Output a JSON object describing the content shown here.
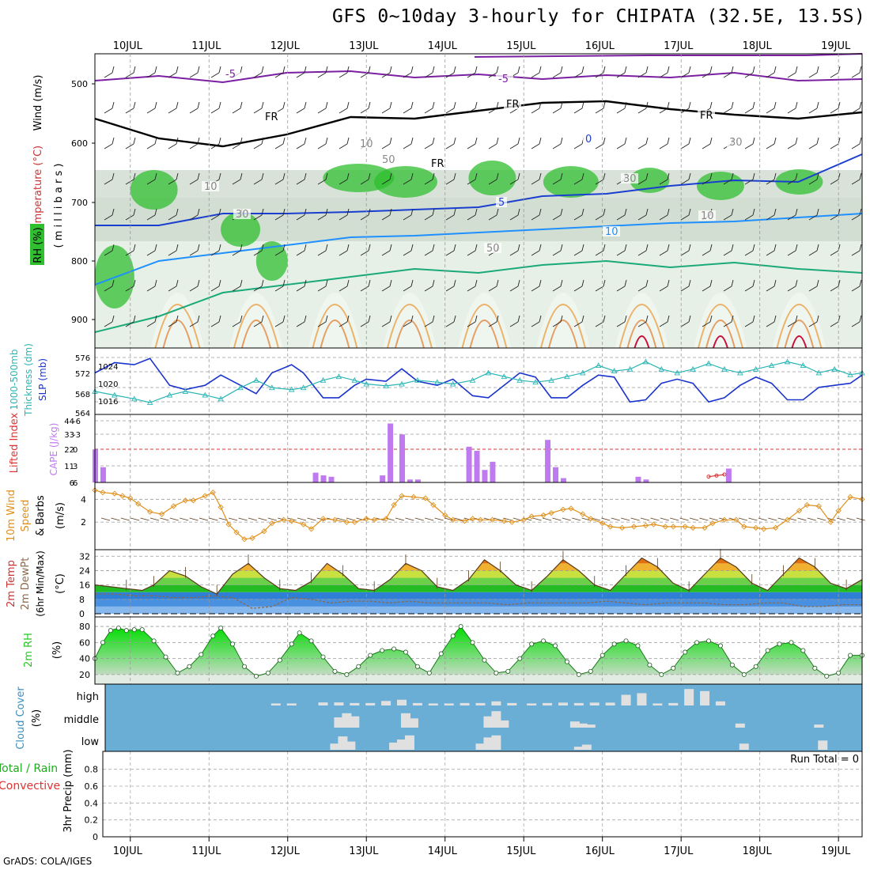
{
  "title": "GFS 0~10day 3-hourly for CHIPATA (32.5E, 13.5S)",
  "footer": "GrADS: COLA/IGES",
  "colors": {
    "frame": "#000000",
    "grid": "#9a9a9a",
    "temp": "#7a1fa2",
    "freeze": "#000000",
    "iso_blue": "#1a3fd0",
    "iso_lblue": "#1e90ff",
    "iso_teal": "#1aaa7a",
    "iso_orange": "#e08a1a",
    "iso_red": "#c8103c",
    "rh_dark": "#2fbf2f",
    "rh_light": "#dff0df",
    "rh_grey": "#aebdae",
    "slp": "#1a33cc",
    "thick": "#2ab5b5",
    "cape": "#c07af0",
    "li_zero": "#dd3333",
    "wind": "#e0901a",
    "barb": "#5a3a1a",
    "rh2m": "#22cc22",
    "cloud_bg": "#6aaed6",
    "cloud": "#e0e0e0",
    "precip_grid": "#aaaaaa"
  },
  "x_axis": {
    "start_day": 9.55,
    "end_day": 19.3,
    "dates_top": [
      "10JUL",
      "11JUL",
      "12JUL",
      "13JUL",
      "14JUL",
      "15JUL",
      "16JUL",
      "17JUL",
      "18JUL",
      "19JUL"
    ],
    "dates_bottom": [
      "10JUL",
      "11JUL",
      "12JUL",
      "13JUL",
      "14JUL",
      "15JUL",
      "16JUL",
      "17JUL",
      "18JUL",
      "19JUL"
    ]
  },
  "panels": {
    "upper": {
      "ylabels": [
        "Wind (m/s)",
        "Temperature (°C)",
        "RH (%)",
        "( m i l l i b a r s )"
      ],
      "ticks": [
        "500",
        "600",
        "700",
        "800",
        "900"
      ],
      "contour_labels": [
        "-5",
        "-5",
        "FR",
        "FR",
        "FR",
        "FR",
        "0",
        "5",
        "10",
        "10",
        "10",
        "30",
        "30",
        "50",
        "30",
        "50",
        "10"
      ]
    },
    "slp": {
      "ylabels": [
        "1000-500mb",
        "Thickness (dm)",
        "SLP (mb)"
      ],
      "left_ticks": [
        "576",
        "572",
        "568",
        "564"
      ],
      "right_ticks": [
        "1024",
        "1020",
        "1016"
      ]
    },
    "cape": {
      "ylabels": [
        "Lifted Index",
        "CAPE (J/kg)"
      ],
      "left_ticks": [
        "-6",
        "-3",
        "0",
        "3",
        "6"
      ],
      "right_ticks": [
        "44",
        "33",
        "22",
        "11",
        "6"
      ]
    },
    "wind10": {
      "ylabels": [
        "10m Wind",
        "Speed",
        "& Barbs",
        "(m/s)"
      ],
      "ticks": [
        "4",
        "2"
      ]
    },
    "temp2m": {
      "ylabels": [
        "2m Temp",
        "2m DewPt",
        "(6hr Min/Max)",
        "(°C)"
      ],
      "ticks": [
        "32",
        "24",
        "16",
        "8",
        "0"
      ]
    },
    "rh2m": {
      "ylabels": [
        "2m RH",
        "(%)"
      ],
      "ticks": [
        "80",
        "60",
        "40",
        "20"
      ]
    },
    "cloud": {
      "ylabels": [
        "Cloud Cover",
        "(%)"
      ],
      "ticks": [
        "high",
        "middle",
        "low"
      ]
    },
    "precip": {
      "ylabels": [
        "Total / Rain",
        "Convective",
        "3hr Precip (mm)"
      ],
      "ticks": [
        "0.8",
        "0.6",
        "0.4",
        "0.2",
        "0"
      ],
      "run_total": "Run Total = 0"
    }
  },
  "chart_data": [
    {
      "type": "line",
      "name": "slp",
      "ylabel": "SLP (mb)",
      "ylim": [
        1014,
        1027
      ],
      "x": [
        9.55,
        9.8,
        10.05,
        10.25,
        10.5,
        10.7,
        10.95,
        11.15,
        11.4,
        11.6,
        11.8,
        12.05,
        12.2,
        12.45,
        12.65,
        12.85,
        13.0,
        13.25,
        13.45,
        13.65,
        13.9,
        14.1,
        14.35,
        14.55,
        14.75,
        14.95,
        15.15,
        15.35,
        15.55,
        15.75,
        15.95,
        16.15,
        16.35,
        16.55,
        16.75,
        16.95,
        17.15,
        17.35,
        17.55,
        17.75,
        17.95,
        18.15,
        18.35,
        18.55,
        18.75,
        18.95,
        19.15,
        19.3
      ],
      "values": [
        1022.5,
        1025,
        1024.5,
        1026,
        1019.5,
        1018.5,
        1019.5,
        1022,
        1019.5,
        1017.5,
        1022.5,
        1024.5,
        1022.5,
        1016.5,
        1016.5,
        1019.5,
        1021,
        1020.5,
        1023.5,
        1020.5,
        1019.5,
        1021,
        1017,
        1016.5,
        1019.5,
        1022.5,
        1021.5,
        1016.5,
        1016.5,
        1019.5,
        1022,
        1021.5,
        1015.5,
        1016,
        1020,
        1021,
        1020,
        1015.5,
        1016.5,
        1019.5,
        1021.5,
        1020,
        1016,
        1016,
        1019,
        1019.5,
        1020,
        1022
      ]
    },
    {
      "type": "line",
      "name": "thickness",
      "ylabel": "1000-500mb Thickness (dm)",
      "ylim": [
        563.5,
        578
      ],
      "x": [
        9.55,
        9.8,
        10.05,
        10.25,
        10.5,
        10.7,
        10.95,
        11.15,
        11.4,
        11.6,
        11.8,
        12.05,
        12.2,
        12.45,
        12.65,
        12.85,
        13.0,
        13.25,
        13.45,
        13.65,
        13.9,
        14.1,
        14.35,
        14.55,
        14.75,
        14.95,
        15.15,
        15.35,
        15.55,
        15.75,
        15.95,
        16.15,
        16.35,
        16.55,
        16.75,
        16.95,
        17.15,
        17.35,
        17.55,
        17.75,
        17.95,
        18.15,
        18.35,
        18.55,
        18.75,
        18.95,
        19.15,
        19.3
      ],
      "values": [
        568,
        567,
        566,
        565,
        567,
        568,
        567,
        566,
        569,
        571,
        569,
        568.5,
        569,
        571,
        572,
        571,
        570,
        569.5,
        570,
        571,
        570.5,
        570,
        571,
        573,
        572,
        571,
        570.5,
        571,
        572,
        573,
        575,
        573.5,
        574,
        576,
        574,
        573,
        574,
        575.5,
        574,
        573,
        574,
        575,
        576,
        575,
        573,
        574,
        572.5,
        573
      ]
    },
    {
      "type": "bar",
      "name": "cape",
      "ylabel": "CAPE (J/kg)",
      "ylim": [
        0,
        44
      ],
      "x": [
        9.55,
        9.65,
        12.35,
        12.45,
        12.55,
        13.2,
        13.3,
        13.45,
        13.55,
        13.65,
        14.3,
        14.4,
        14.5,
        14.6,
        15.3,
        15.4,
        15.5,
        16.45,
        16.55,
        17.6
      ],
      "values": [
        23,
        10,
        6,
        4,
        3,
        4,
        42,
        34,
        1,
        1,
        25,
        22,
        8,
        14,
        30,
        10,
        2,
        3,
        1,
        9
      ]
    },
    {
      "type": "line",
      "name": "lifted_index",
      "ylabel": "Lifted Index",
      "ylim": [
        6,
        -6
      ],
      "x": [
        17.35,
        17.45,
        17.55
      ],
      "values": [
        5.2,
        5.0,
        4.8
      ]
    },
    {
      "type": "line",
      "name": "wind10m",
      "ylabel": "10m Wind Speed (m/s)",
      "ylim": [
        0,
        5.2
      ],
      "x": [
        9.55,
        9.65,
        9.8,
        9.9,
        10.0,
        10.1,
        10.25,
        10.4,
        10.55,
        10.7,
        10.8,
        10.95,
        11.05,
        11.15,
        11.25,
        11.35,
        11.45,
        11.55,
        11.7,
        11.8,
        11.95,
        12.05,
        12.2,
        12.3,
        12.45,
        12.6,
        12.75,
        12.85,
        13.0,
        13.1,
        13.25,
        13.35,
        13.45,
        13.6,
        13.75,
        13.85,
        14.0,
        14.1,
        14.25,
        14.35,
        14.45,
        14.6,
        14.75,
        14.85,
        15.0,
        15.1,
        15.25,
        15.35,
        15.5,
        15.6,
        15.75,
        15.85,
        16.0,
        16.1,
        16.25,
        16.4,
        16.55,
        16.65,
        16.8,
        16.9,
        17.05,
        17.15,
        17.3,
        17.4,
        17.55,
        17.7,
        17.8,
        17.95,
        18.05,
        18.2,
        18.35,
        18.5,
        18.6,
        18.75,
        18.9,
        19.0,
        19.15,
        19.3
      ],
      "values": [
        4.8,
        4.6,
        4.5,
        4.3,
        4.1,
        3.6,
        2.9,
        2.7,
        3.4,
        3.9,
        3.9,
        4.3,
        4.6,
        3.3,
        1.8,
        1.1,
        0.5,
        0.6,
        1.2,
        1.9,
        2.2,
        2.1,
        1.8,
        1.4,
        2.3,
        2.2,
        2.0,
        2.0,
        2.3,
        2.2,
        2.3,
        3.5,
        4.3,
        4.2,
        4.1,
        3.5,
        2.6,
        2.2,
        2.1,
        2.3,
        2.2,
        2.2,
        2.1,
        2.0,
        2.2,
        2.5,
        2.6,
        2.8,
        3.1,
        3.2,
        2.7,
        2.3,
        1.9,
        1.6,
        1.5,
        1.6,
        1.7,
        1.8,
        1.6,
        1.6,
        1.6,
        1.5,
        1.5,
        1.9,
        2.2,
        2.2,
        1.6,
        1.5,
        1.4,
        1.5,
        2.2,
        3.0,
        3.5,
        3.4,
        2.0,
        3.0,
        4.2,
        4.0
      ]
    },
    {
      "type": "area",
      "name": "temp2m",
      "ylabel": "2m Temp (°C)",
      "ylim": [
        0,
        33
      ],
      "x": [
        9.55,
        9.75,
        9.95,
        10.15,
        10.3,
        10.5,
        10.7,
        10.9,
        11.1,
        11.3,
        11.5,
        11.7,
        11.9,
        12.1,
        12.3,
        12.5,
        12.7,
        12.9,
        13.1,
        13.3,
        13.5,
        13.7,
        13.9,
        14.1,
        14.3,
        14.5,
        14.7,
        14.9,
        15.1,
        15.3,
        15.5,
        15.7,
        15.9,
        16.1,
        16.3,
        16.5,
        16.7,
        16.9,
        17.1,
        17.3,
        17.5,
        17.7,
        17.9,
        18.1,
        18.3,
        18.5,
        18.7,
        18.9,
        19.1,
        19.3
      ],
      "values": [
        16,
        15,
        14,
        13,
        16,
        24,
        21,
        15,
        11,
        22,
        28,
        20,
        14,
        13,
        18,
        28,
        22,
        14,
        13,
        19,
        28,
        24,
        15,
        13,
        19,
        30,
        24,
        16,
        13,
        21,
        30,
        24,
        16,
        13,
        22,
        31,
        26,
        17,
        13,
        22,
        31,
        26,
        17,
        13,
        22,
        31,
        26,
        17,
        14,
        19
      ]
    },
    {
      "type": "line",
      "name": "dewpt2m",
      "ylabel": "2m DewPt (°C)",
      "ylim": [
        0,
        33
      ],
      "x": [
        9.55,
        9.8,
        10.05,
        10.3,
        10.55,
        10.8,
        11.05,
        11.3,
        11.55,
        11.8,
        12.05,
        12.3,
        12.55,
        12.8,
        13.05,
        13.3,
        13.55,
        13.8,
        14.05,
        14.3,
        14.55,
        14.8,
        15.05,
        15.3,
        15.55,
        15.8,
        16.05,
        16.3,
        16.55,
        16.8,
        17.05,
        17.3,
        17.55,
        17.8,
        18.05,
        18.3,
        18.55,
        18.8,
        19.05,
        19.3
      ],
      "values": [
        11,
        11,
        10,
        10,
        9,
        9,
        10,
        9,
        3,
        4,
        9,
        8,
        6,
        7,
        7,
        6,
        7,
        6,
        6,
        6,
        6,
        5,
        6,
        6,
        6,
        6,
        7,
        6,
        5,
        6,
        6,
        6,
        5,
        5,
        6,
        6,
        4,
        4,
        5,
        5
      ]
    },
    {
      "type": "area",
      "name": "rh2m",
      "ylabel": "2m RH (%)",
      "ylim": [
        12,
        86
      ],
      "x": [
        9.55,
        9.65,
        9.75,
        9.85,
        9.95,
        10.05,
        10.15,
        10.3,
        10.45,
        10.6,
        10.75,
        10.9,
        11.05,
        11.15,
        11.3,
        11.45,
        11.6,
        11.75,
        11.9,
        12.05,
        12.15,
        12.3,
        12.45,
        12.6,
        12.75,
        12.9,
        13.05,
        13.2,
        13.35,
        13.5,
        13.65,
        13.8,
        13.95,
        14.1,
        14.2,
        14.35,
        14.5,
        14.65,
        14.8,
        14.95,
        15.1,
        15.25,
        15.4,
        15.55,
        15.7,
        15.85,
        16.0,
        16.15,
        16.3,
        16.45,
        16.6,
        16.75,
        16.9,
        17.05,
        17.2,
        17.35,
        17.5,
        17.65,
        17.8,
        17.95,
        18.1,
        18.25,
        18.4,
        18.55,
        18.7,
        18.85,
        19.0,
        19.15,
        19.3
      ],
      "values": [
        40,
        60,
        75,
        78,
        75,
        76,
        76,
        62,
        42,
        22,
        30,
        45,
        68,
        78,
        58,
        30,
        18,
        22,
        38,
        58,
        72,
        62,
        42,
        24,
        20,
        30,
        44,
        50,
        52,
        48,
        30,
        22,
        46,
        68,
        80,
        60,
        38,
        22,
        24,
        40,
        58,
        62,
        56,
        36,
        20,
        24,
        44,
        58,
        62,
        56,
        32,
        20,
        28,
        48,
        60,
        62,
        56,
        32,
        20,
        30,
        50,
        58,
        60,
        50,
        28,
        18,
        22,
        44,
        44
      ]
    },
    {
      "type": "bar",
      "name": "cloud_high",
      "ylabel": "Cloud Cover high (%)",
      "ylim": [
        0,
        100
      ],
      "x": [
        11.85,
        12.05,
        12.45,
        12.65,
        12.85,
        13.05,
        13.25,
        13.45,
        13.65,
        13.85,
        14.05,
        14.25,
        14.45,
        14.65,
        14.85,
        15.1,
        15.3,
        15.5,
        15.7,
        15.9,
        16.1,
        16.3,
        16.5,
        16.7,
        16.9,
        17.1,
        17.3,
        17.5
      ],
      "values": [
        10,
        10,
        15,
        15,
        12,
        12,
        22,
        28,
        12,
        10,
        10,
        12,
        12,
        20,
        12,
        10,
        12,
        14,
        12,
        14,
        14,
        52,
        60,
        10,
        12,
        80,
        70,
        20
      ]
    },
    {
      "type": "bar",
      "name": "cloud_middle",
      "ylabel": "Cloud Cover middle (%)",
      "ylim": [
        0,
        100
      ],
      "x": [
        12.65,
        12.75,
        12.85,
        13.5,
        13.6,
        14.55,
        14.65,
        14.75,
        15.65,
        15.75,
        15.85,
        17.75,
        18.75
      ],
      "values": [
        50,
        70,
        55,
        70,
        45,
        55,
        80,
        35,
        30,
        20,
        15,
        20,
        15
      ]
    },
    {
      "type": "bar",
      "name": "cloud_low",
      "ylabel": "Cloud Cover low (%)",
      "ylim": [
        0,
        100
      ],
      "x": [
        12.6,
        12.7,
        12.8,
        13.35,
        13.45,
        13.55,
        14.45,
        14.55,
        14.65,
        15.7,
        15.8,
        17.8,
        18.8
      ],
      "values": [
        30,
        65,
        40,
        35,
        50,
        70,
        30,
        60,
        70,
        15,
        25,
        30,
        45
      ]
    }
  ]
}
